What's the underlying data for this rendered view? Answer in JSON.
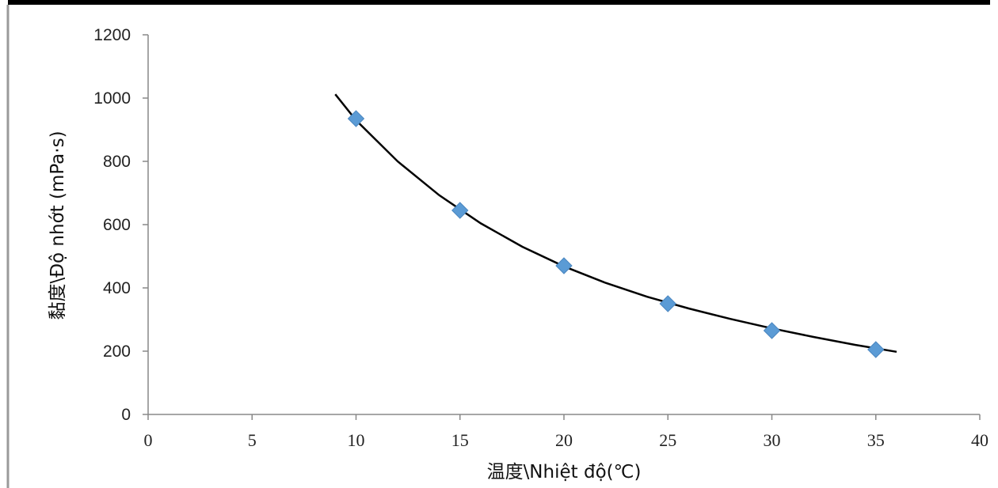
{
  "chart_data": {
    "type": "scatter",
    "title": "",
    "xlabel": "温度\\Nhiệt độ(℃)",
    "ylabel": "黏度\\Độ nhớt (mPa·s)",
    "xlim": [
      0,
      40
    ],
    "ylim": [
      0,
      1200
    ],
    "x_ticks": [
      0,
      5,
      10,
      15,
      20,
      25,
      30,
      35,
      40
    ],
    "y_ticks": [
      0,
      200,
      400,
      600,
      800,
      1000,
      1200
    ],
    "grid": false,
    "legend": "none",
    "series": [
      {
        "x": [
          10,
          15,
          20,
          25,
          30,
          35
        ],
        "y": [
          935,
          645,
          470,
          350,
          265,
          205
        ],
        "marker": "diamond",
        "color": "#5b9bd5"
      }
    ],
    "trendline": {
      "type": "fitted-curve",
      "x": [
        9,
        10,
        12,
        14,
        16,
        18,
        20,
        22,
        24,
        26,
        28,
        30,
        32,
        34,
        36
      ],
      "y": [
        1012,
        930,
        800,
        693,
        604,
        530,
        468,
        416,
        372,
        335,
        302,
        272,
        245,
        220,
        198
      ],
      "color": "#000000"
    }
  }
}
